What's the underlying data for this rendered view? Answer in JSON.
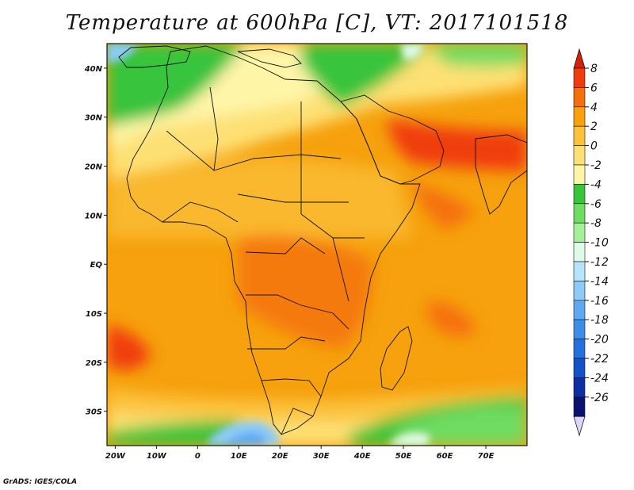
{
  "title": "Temperature at 600hPa [C], VT: 2017101518",
  "credit": "GrADS: IGES/COLA",
  "map": {
    "lon_range": [
      -22,
      80
    ],
    "lat_range": [
      -37,
      45
    ],
    "x_ticks": [
      {
        "value": -20,
        "label": "20W"
      },
      {
        "value": -10,
        "label": "10W"
      },
      {
        "value": 0,
        "label": "0"
      },
      {
        "value": 10,
        "label": "10E"
      },
      {
        "value": 20,
        "label": "20E"
      },
      {
        "value": 30,
        "label": "30E"
      },
      {
        "value": 40,
        "label": "40E"
      },
      {
        "value": 50,
        "label": "50E"
      },
      {
        "value": 60,
        "label": "60E"
      },
      {
        "value": 70,
        "label": "70E"
      }
    ],
    "y_ticks": [
      {
        "value": 40,
        "label": "40N"
      },
      {
        "value": 30,
        "label": "30N"
      },
      {
        "value": 20,
        "label": "20N"
      },
      {
        "value": 10,
        "label": "10N"
      },
      {
        "value": 0,
        "label": "EQ"
      },
      {
        "value": -10,
        "label": "10S"
      },
      {
        "value": -20,
        "label": "20S"
      },
      {
        "value": -30,
        "label": "30S"
      }
    ]
  },
  "colorbar": {
    "levels": [
      "8",
      "6",
      "4",
      "2",
      "0",
      "-2",
      "-4",
      "-6",
      "-8",
      "-10",
      "-12",
      "-14",
      "-16",
      "-18",
      "-20",
      "-22",
      "-24",
      "-26"
    ],
    "colors": [
      "#f03c0c",
      "#f56f0a",
      "#f9a00d",
      "#fbc23c",
      "#fde074",
      "#fef5a7",
      "#38c43d",
      "#6fdc62",
      "#a4f09a",
      "#dffbe7",
      "#b5e4fb",
      "#8ccaf7",
      "#5ea9f2",
      "#3e8ee8",
      "#2470dd",
      "#1253c7",
      "#0c2fa3",
      "#0a1270"
    ],
    "top_color": "#d4200c",
    "bottom_color": "#ddd7f6"
  }
}
